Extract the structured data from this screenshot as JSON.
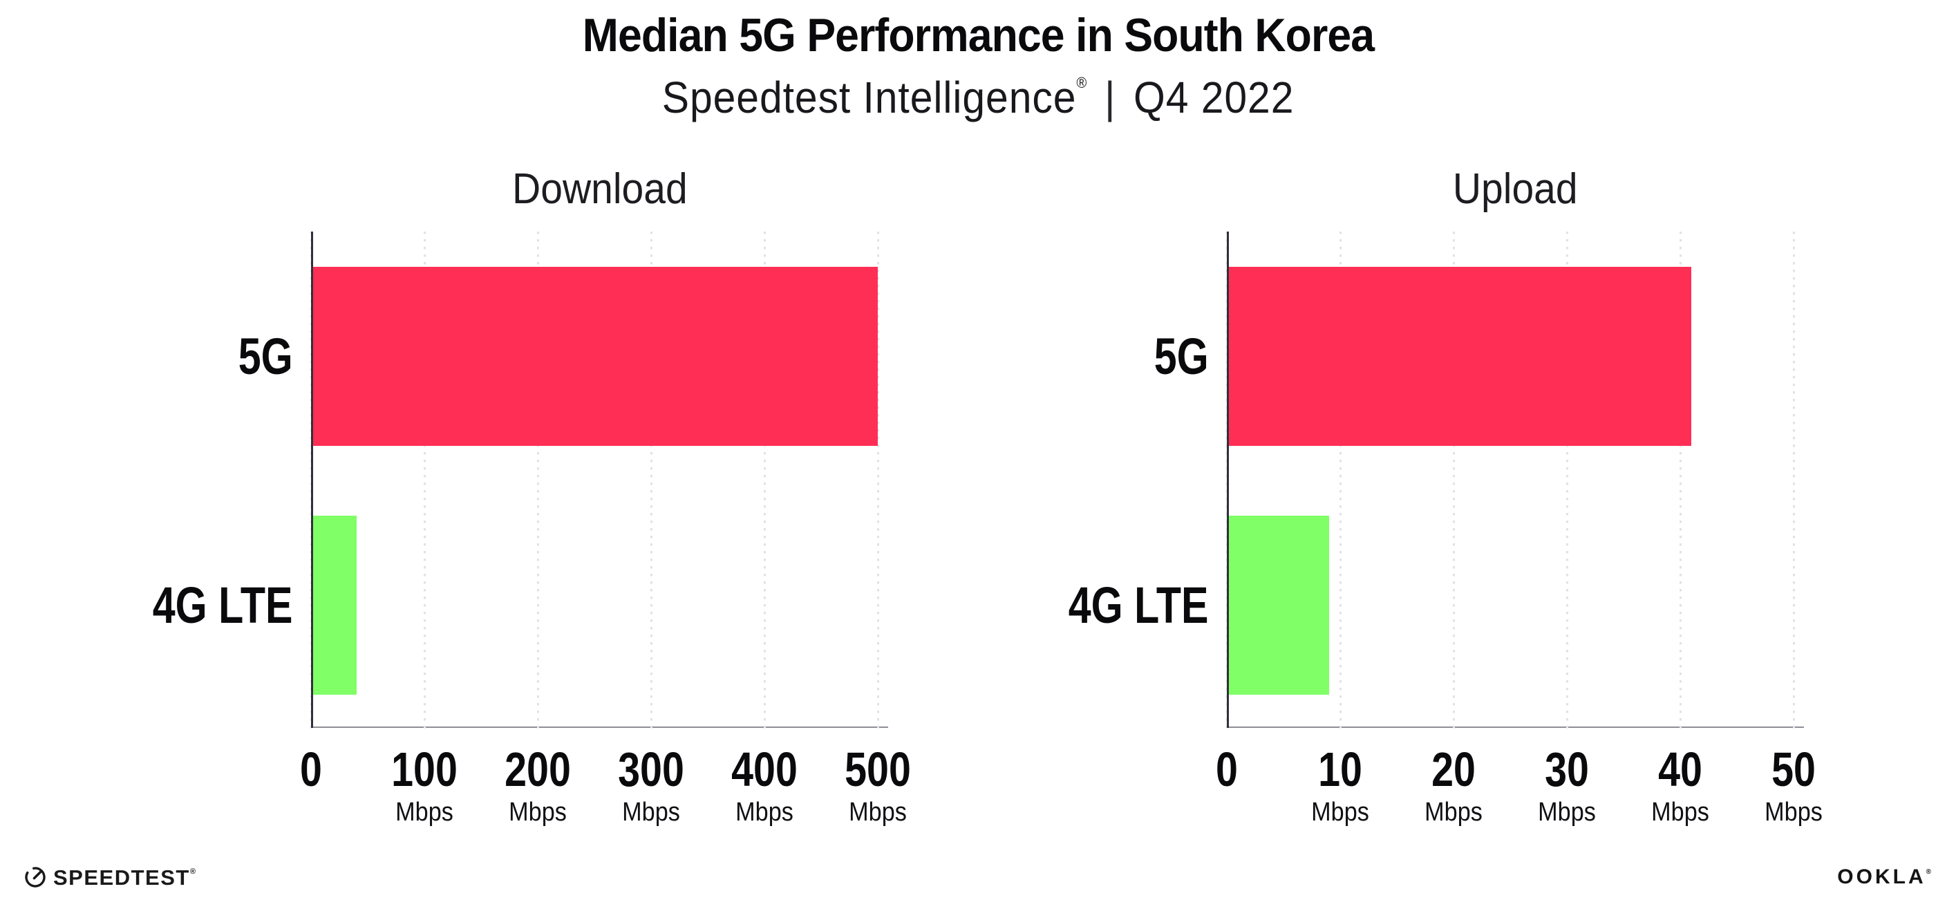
{
  "header": {
    "title": "Median 5G Performance in South Korea",
    "subtitle_brand": "Speedtest Intelligence",
    "subtitle_reg": "®",
    "subtitle_sep": "|",
    "subtitle_period": "Q4 2022"
  },
  "chart_data": [
    {
      "type": "bar",
      "orientation": "horizontal",
      "title": "Download",
      "categories": [
        "5G",
        "4G LTE"
      ],
      "values": [
        500,
        40
      ],
      "value_unit": "Mbps",
      "xlim": [
        0,
        500
      ],
      "ticks": [
        0,
        100,
        200,
        300,
        400,
        500
      ],
      "tick_unit": "Mbps",
      "bar_colors": [
        "#FF2E55",
        "#80FF66"
      ],
      "grid": "vertical-dotted",
      "legend": "none"
    },
    {
      "type": "bar",
      "orientation": "horizontal",
      "title": "Upload",
      "categories": [
        "5G",
        "4G LTE"
      ],
      "values": [
        41,
        9
      ],
      "value_unit": "Mbps",
      "xlim": [
        0,
        50
      ],
      "ticks": [
        0,
        10,
        20,
        30,
        40,
        50
      ],
      "tick_unit": "Mbps",
      "bar_colors": [
        "#FF2E55",
        "#80FF66"
      ],
      "grid": "vertical-dotted",
      "legend": "none"
    }
  ],
  "footer": {
    "speedtest_label": "SPEEDTEST",
    "speedtest_reg": "®",
    "ookla_label": "OOKLA",
    "ookla_reg": "®"
  },
  "colors": {
    "bar_5g": "#FF2E55",
    "bar_4g_lte": "#80FF66",
    "y_axis_line": "#30303a",
    "x_axis_line": "#8e8e96",
    "gridline": "#e2e0eb",
    "text": "#0a0a0c",
    "background": "#ffffff"
  }
}
